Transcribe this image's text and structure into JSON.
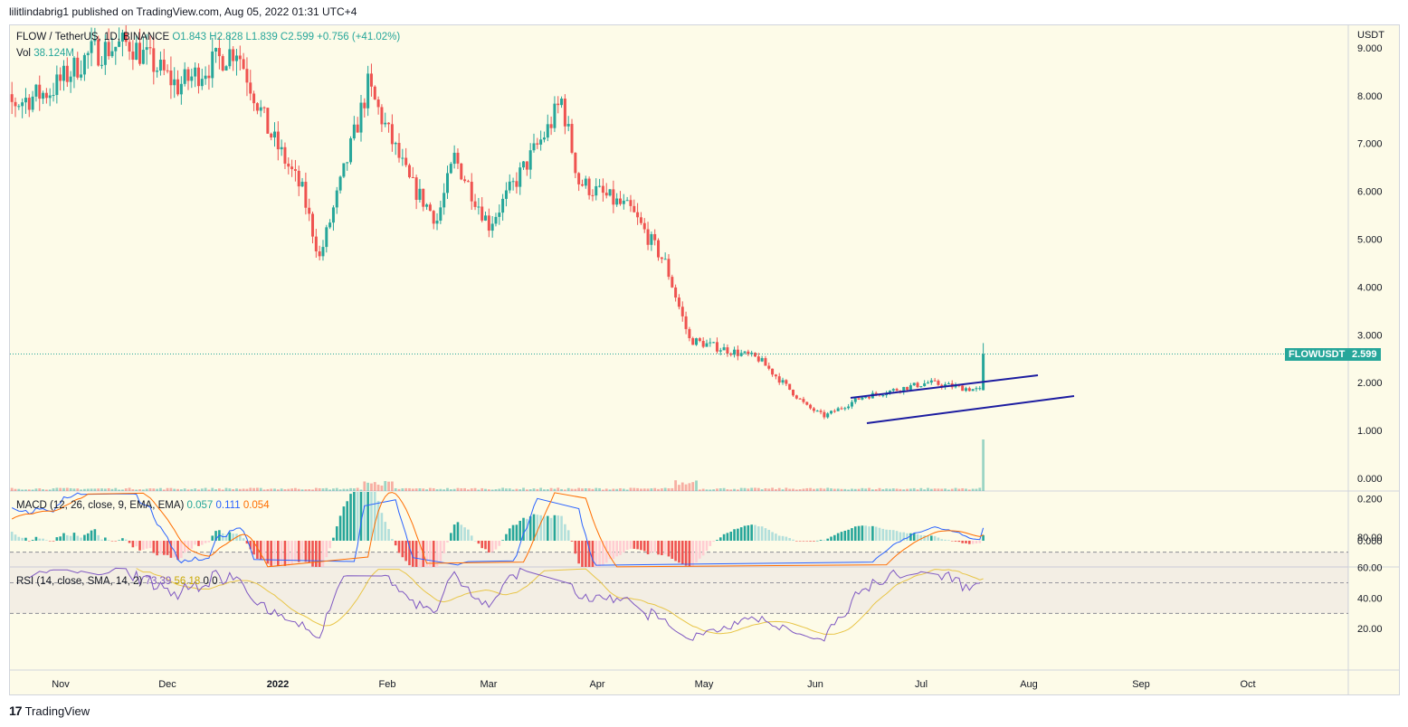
{
  "header": {
    "publisher_line": "lilitlindabrig1 published on TradingView.com, Aug 05, 2022 01:31 UTC+4"
  },
  "main_legend": {
    "symbol": "FLOW / TetherUS, 1D, BINANCE",
    "ohlc": "O1.843 H2.828 L1.839 C2.599 +0.756 (+41.02%)",
    "vol_label": "Vol",
    "vol_value": "38.124M"
  },
  "macd_legend": {
    "label": "MACD (12, 26, close, 9, EMA, EMA)",
    "hist": "0.057",
    "macd": "0.111",
    "signal": "0.054"
  },
  "rsi_legend": {
    "label": "RSI (14, close, SMA, 14, 2)",
    "rsi": "73.39",
    "sma": "56.18",
    "extra": "0 0"
  },
  "price_axis": {
    "currency": "USDT",
    "ticks": [
      "9.000",
      "8.000",
      "7.000",
      "6.000",
      "5.000",
      "4.000",
      "3.000",
      "2.000",
      "1.000",
      "0.000"
    ]
  },
  "macd_axis": {
    "ticks": [
      "0.200",
      "0.000"
    ]
  },
  "rsi_axis": {
    "ticks": [
      "80.00",
      "60.00",
      "40.00",
      "20.00"
    ]
  },
  "time_axis": {
    "ticks": [
      "Nov",
      "Dec",
      "2022",
      "Feb",
      "Mar",
      "Apr",
      "May",
      "Jun",
      "Jul",
      "Aug",
      "Sep",
      "Oct"
    ]
  },
  "last_price": {
    "symbol": "FLOWUSDT",
    "value": "2.599"
  },
  "footer": {
    "brand": "TradingView",
    "logo": "17"
  },
  "colors": {
    "up": "#26a69a",
    "down": "#ef5350",
    "channel": "#1c1ca0",
    "rsi": "#7e57c2",
    "rsi_sma": "#f5d33a",
    "macd": "#2962ff",
    "signal": "#ff6d00",
    "bg": "#fdfbe8"
  },
  "chart_data": {
    "type": "candlestick",
    "symbol": "FLOW / TetherUS",
    "interval": "1D",
    "approx_close_path": [
      {
        "date": "2021-12-01",
        "close": 9.1
      },
      {
        "date": "2021-12-15",
        "close": 8.2
      },
      {
        "date": "2022-01-01",
        "close": 9.0
      },
      {
        "date": "2022-01-10",
        "close": 7.3
      },
      {
        "date": "2022-01-20",
        "close": 6.0
      },
      {
        "date": "2022-01-25",
        "close": 4.6
      },
      {
        "date": "2022-02-08",
        "close": 8.2
      },
      {
        "date": "2022-02-20",
        "close": 6.2
      },
      {
        "date": "2022-02-28",
        "close": 5.4
      },
      {
        "date": "2022-03-05",
        "close": 6.7
      },
      {
        "date": "2022-03-15",
        "close": 5.3
      },
      {
        "date": "2022-04-01",
        "close": 7.3
      },
      {
        "date": "2022-04-05",
        "close": 7.9
      },
      {
        "date": "2022-04-10",
        "close": 6.2
      },
      {
        "date": "2022-04-25",
        "close": 5.6
      },
      {
        "date": "2022-05-05",
        "close": 4.5
      },
      {
        "date": "2022-05-12",
        "close": 2.9
      },
      {
        "date": "2022-06-01",
        "close": 2.5
      },
      {
        "date": "2022-06-15",
        "close": 1.5
      },
      {
        "date": "2022-06-20",
        "close": 1.3
      },
      {
        "date": "2022-07-01",
        "close": 1.7
      },
      {
        "date": "2022-07-20",
        "close": 2.0
      },
      {
        "date": "2022-08-04",
        "close": 1.84
      },
      {
        "date": "2022-08-05",
        "close": 2.599
      }
    ],
    "ylim": [
      0,
      9.2
    ]
  }
}
